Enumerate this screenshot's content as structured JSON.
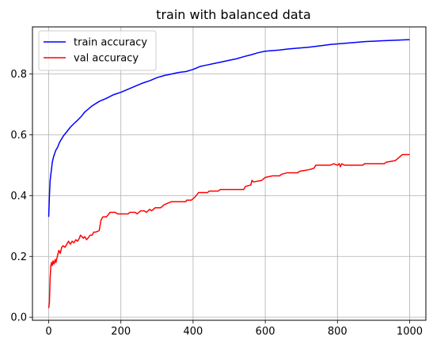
{
  "chart_data": {
    "type": "line",
    "title": "train with balanced data",
    "xlabel": "",
    "ylabel": "",
    "xlim": [
      -45,
      1045
    ],
    "ylim": [
      -0.01,
      0.955
    ],
    "grid": true,
    "legend_position": "upper-left",
    "x_ticks": [
      0,
      200,
      400,
      600,
      800,
      1000
    ],
    "x_tick_labels": [
      "0",
      "200",
      "400",
      "600",
      "800",
      "1000"
    ],
    "y_ticks": [
      0.0,
      0.2,
      0.4,
      0.6,
      0.8
    ],
    "y_tick_labels": [
      "0.0",
      "0.2",
      "0.4",
      "0.6",
      "0.8"
    ],
    "series": [
      {
        "name": "train accuracy",
        "color": "#0000ff",
        "points": [
          [
            0,
            0.33
          ],
          [
            2,
            0.4
          ],
          [
            4,
            0.45
          ],
          [
            6,
            0.47
          ],
          [
            8,
            0.49
          ],
          [
            10,
            0.51
          ],
          [
            14,
            0.53
          ],
          [
            20,
            0.55
          ],
          [
            25,
            0.56
          ],
          [
            30,
            0.575
          ],
          [
            40,
            0.595
          ],
          [
            50,
            0.61
          ],
          [
            60,
            0.625
          ],
          [
            70,
            0.637
          ],
          [
            80,
            0.648
          ],
          [
            90,
            0.66
          ],
          [
            100,
            0.675
          ],
          [
            110,
            0.685
          ],
          [
            120,
            0.695
          ],
          [
            140,
            0.71
          ],
          [
            160,
            0.72
          ],
          [
            180,
            0.732
          ],
          [
            200,
            0.74
          ],
          [
            220,
            0.75
          ],
          [
            240,
            0.76
          ],
          [
            260,
            0.77
          ],
          [
            280,
            0.778
          ],
          [
            300,
            0.788
          ],
          [
            320,
            0.795
          ],
          [
            340,
            0.8
          ],
          [
            360,
            0.805
          ],
          [
            380,
            0.808
          ],
          [
            400,
            0.815
          ],
          [
            420,
            0.825
          ],
          [
            440,
            0.83
          ],
          [
            460,
            0.835
          ],
          [
            480,
            0.84
          ],
          [
            500,
            0.845
          ],
          [
            520,
            0.85
          ],
          [
            540,
            0.857
          ],
          [
            560,
            0.863
          ],
          [
            580,
            0.87
          ],
          [
            600,
            0.875
          ],
          [
            620,
            0.877
          ],
          [
            640,
            0.879
          ],
          [
            660,
            0.882
          ],
          [
            680,
            0.884
          ],
          [
            700,
            0.886
          ],
          [
            720,
            0.888
          ],
          [
            740,
            0.891
          ],
          [
            760,
            0.894
          ],
          [
            780,
            0.897
          ],
          [
            800,
            0.899
          ],
          [
            820,
            0.901
          ],
          [
            840,
            0.903
          ],
          [
            860,
            0.905
          ],
          [
            880,
            0.907
          ],
          [
            900,
            0.908
          ],
          [
            920,
            0.909
          ],
          [
            940,
            0.91
          ],
          [
            960,
            0.911
          ],
          [
            980,
            0.912
          ],
          [
            1000,
            0.913
          ]
        ]
      },
      {
        "name": "val accuracy",
        "color": "#ff0000",
        "points": [
          [
            0,
            0.03
          ],
          [
            2,
            0.05
          ],
          [
            4,
            0.13
          ],
          [
            6,
            0.17
          ],
          [
            8,
            0.18
          ],
          [
            10,
            0.17
          ],
          [
            12,
            0.185
          ],
          [
            15,
            0.175
          ],
          [
            18,
            0.19
          ],
          [
            20,
            0.18
          ],
          [
            24,
            0.2
          ],
          [
            28,
            0.22
          ],
          [
            32,
            0.21
          ],
          [
            36,
            0.23
          ],
          [
            40,
            0.235
          ],
          [
            45,
            0.23
          ],
          [
            50,
            0.24
          ],
          [
            55,
            0.25
          ],
          [
            60,
            0.24
          ],
          [
            65,
            0.25
          ],
          [
            70,
            0.245
          ],
          [
            75,
            0.255
          ],
          [
            80,
            0.25
          ],
          [
            85,
            0.26
          ],
          [
            88,
            0.27
          ],
          [
            92,
            0.265
          ],
          [
            96,
            0.26
          ],
          [
            100,
            0.265
          ],
          [
            105,
            0.255
          ],
          [
            110,
            0.262
          ],
          [
            115,
            0.27
          ],
          [
            120,
            0.27
          ],
          [
            125,
            0.28
          ],
          [
            130,
            0.28
          ],
          [
            140,
            0.285
          ],
          [
            145,
            0.32
          ],
          [
            150,
            0.33
          ],
          [
            160,
            0.33
          ],
          [
            170,
            0.345
          ],
          [
            185,
            0.345
          ],
          [
            190,
            0.34
          ],
          [
            220,
            0.34
          ],
          [
            225,
            0.345
          ],
          [
            240,
            0.345
          ],
          [
            245,
            0.34
          ],
          [
            255,
            0.35
          ],
          [
            265,
            0.35
          ],
          [
            270,
            0.345
          ],
          [
            280,
            0.355
          ],
          [
            285,
            0.35
          ],
          [
            295,
            0.36
          ],
          [
            310,
            0.36
          ],
          [
            315,
            0.365
          ],
          [
            320,
            0.37
          ],
          [
            330,
            0.375
          ],
          [
            340,
            0.38
          ],
          [
            380,
            0.38
          ],
          [
            382,
            0.385
          ],
          [
            395,
            0.385
          ],
          [
            400,
            0.39
          ],
          [
            405,
            0.395
          ],
          [
            412,
            0.405
          ],
          [
            415,
            0.41
          ],
          [
            440,
            0.41
          ],
          [
            445,
            0.415
          ],
          [
            470,
            0.415
          ],
          [
            475,
            0.42
          ],
          [
            540,
            0.42
          ],
          [
            545,
            0.43
          ],
          [
            560,
            0.435
          ],
          [
            563,
            0.45
          ],
          [
            568,
            0.445
          ],
          [
            590,
            0.45
          ],
          [
            600,
            0.46
          ],
          [
            620,
            0.465
          ],
          [
            640,
            0.465
          ],
          [
            645,
            0.47
          ],
          [
            660,
            0.475
          ],
          [
            690,
            0.475
          ],
          [
            695,
            0.48
          ],
          [
            720,
            0.485
          ],
          [
            735,
            0.49
          ],
          [
            740,
            0.5
          ],
          [
            760,
            0.5
          ],
          [
            780,
            0.5
          ],
          [
            790,
            0.505
          ],
          [
            800,
            0.5
          ],
          [
            805,
            0.505
          ],
          [
            808,
            0.495
          ],
          [
            812,
            0.505
          ],
          [
            820,
            0.5
          ],
          [
            830,
            0.5
          ],
          [
            870,
            0.5
          ],
          [
            875,
            0.505
          ],
          [
            930,
            0.505
          ],
          [
            935,
            0.51
          ],
          [
            960,
            0.515
          ],
          [
            970,
            0.525
          ],
          [
            980,
            0.535
          ],
          [
            1000,
            0.535
          ]
        ]
      }
    ]
  }
}
